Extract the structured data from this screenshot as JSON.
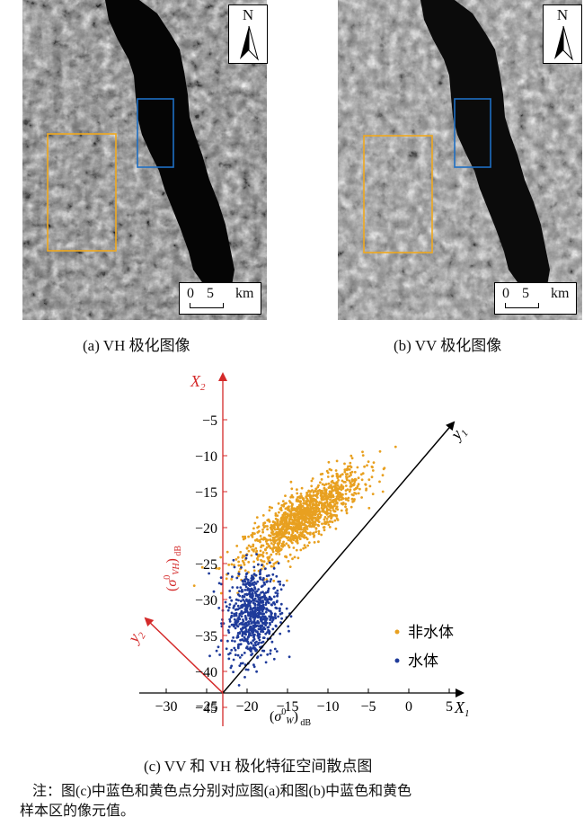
{
  "panel_a": {
    "north_label": "N",
    "scale_zero": "0",
    "scale_five": "5",
    "scale_unit": "km",
    "caption": "(a) VH 极化图像"
  },
  "panel_b": {
    "north_label": "N",
    "scale_zero": "0",
    "scale_five": "5",
    "scale_unit": "km",
    "caption": "(b) VV 极化图像"
  },
  "colors": {
    "non_water": "#e8a020",
    "water": "#1f3b9a",
    "axis_red": "#d42a2a",
    "axis_black": "#000000",
    "blue_box": "#1e6fc4",
    "yellow_box": "#f0a91e"
  },
  "chart_data": {
    "type": "scatter",
    "xlabel": "(σ⁰_W)_dB",
    "ylabel": "(σ⁰_VH)_dB",
    "x_axis_name": "X1",
    "y_axis_name": "X2",
    "rotated_axis_1": "Y1",
    "rotated_axis_2": "Y2",
    "xlim": [
      -33,
      9
    ],
    "ylim": [
      -47,
      -4
    ],
    "x_ticks": [
      -30,
      -25,
      -20,
      -15,
      -10,
      -5,
      0,
      5
    ],
    "y_ticks": [
      -45,
      -40,
      -35,
      -30,
      -25,
      -20,
      -15,
      -10,
      -5
    ],
    "series": [
      {
        "name": "非水体",
        "color": "#e8a020",
        "center": [
          -13,
          -18.5
        ],
        "spread": [
          3.6,
          3.2
        ],
        "correlation": 0.82,
        "count": 1300
      },
      {
        "name": "水体",
        "color": "#1f3b9a",
        "center": [
          -19.3,
          -32
        ],
        "spread": [
          1.6,
          3.2
        ],
        "correlation": 0.1,
        "count": 700
      }
    ],
    "legend": [
      "非水体",
      "水体"
    ],
    "legend_position": "bottom-right",
    "caption": "(c) VV 和 VH 极化特征空间散点图"
  },
  "note": {
    "text_line1": "注：图(c)中蓝色和黄色点分别对应图(a)和图(b)中蓝色和黄色",
    "text_line2": "样本区的像元值。"
  }
}
